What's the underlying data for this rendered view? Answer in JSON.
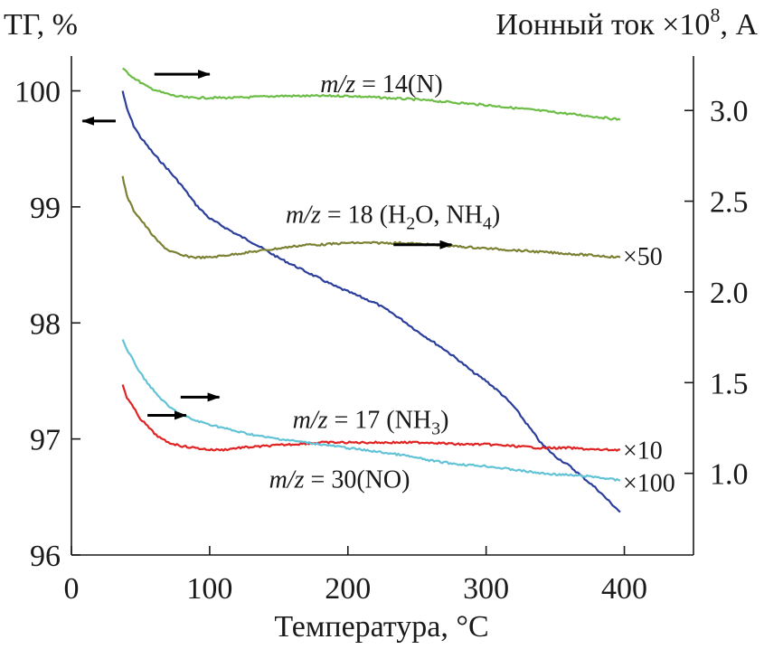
{
  "chart_data": {
    "type": "line",
    "title": "",
    "xlabel": "Температура, °C",
    "ylabel_left": "ТГ, %",
    "ylabel_right": "Ионный ток ×10",
    "ylabel_right_exp": "8",
    "ylabel_right_unit": ", A",
    "xlim": [
      0,
      450
    ],
    "ylim_left": [
      96,
      100.3
    ],
    "ylim_right": [
      0.55,
      3.3
    ],
    "x_ticks": [
      "0",
      "100",
      "200",
      "300",
      "400"
    ],
    "x_tick_values": [
      0,
      100,
      200,
      300,
      400
    ],
    "y_left_ticks": [
      "96",
      "97",
      "98",
      "99",
      "100"
    ],
    "y_left_tick_values": [
      96,
      97,
      98,
      99,
      100
    ],
    "y_right_ticks": [
      "1.0",
      "1.5",
      "2.0",
      "2.5",
      "3.0"
    ],
    "y_right_tick_values": [
      1.0,
      1.5,
      2.0,
      2.5,
      3.0
    ],
    "grid": false,
    "series": [
      {
        "name": "ТГ",
        "axis": "left",
        "color": "#2c3e9c",
        "x": [
          37,
          40,
          45,
          50,
          60,
          70,
          80,
          90,
          100,
          110,
          120,
          130,
          140,
          150,
          160,
          170,
          180,
          190,
          200,
          210,
          220,
          230,
          240,
          250,
          260,
          270,
          280,
          290,
          300,
          310,
          320,
          330,
          340,
          350,
          360,
          370,
          380,
          390,
          397
        ],
        "y": [
          100.0,
          99.85,
          99.7,
          99.6,
          99.45,
          99.32,
          99.18,
          99.02,
          98.9,
          98.83,
          98.76,
          98.7,
          98.63,
          98.56,
          98.5,
          98.44,
          98.38,
          98.32,
          98.27,
          98.22,
          98.17,
          98.1,
          98.02,
          97.93,
          97.85,
          97.77,
          97.68,
          97.58,
          97.5,
          97.4,
          97.28,
          97.12,
          96.96,
          96.85,
          96.77,
          96.67,
          96.57,
          96.45,
          96.37
        ]
      },
      {
        "name": "m/z = 14(N)",
        "axis": "right",
        "color": "#6bbd45",
        "x": [
          37,
          45,
          55,
          65,
          75,
          85,
          100,
          120,
          150,
          200,
          250,
          300,
          350,
          397
        ],
        "y": [
          3.23,
          3.18,
          3.13,
          3.1,
          3.08,
          3.07,
          3.07,
          3.07,
          3.08,
          3.08,
          3.06,
          3.03,
          2.99,
          2.95
        ]
      },
      {
        "name": "m/z = 18 (H₂O, NH₄)",
        "axis": "right",
        "color": "#7b8033",
        "x": [
          37,
          40,
          45,
          50,
          55,
          60,
          65,
          70,
          80,
          90,
          100,
          110,
          120,
          130,
          140,
          150,
          160,
          170,
          180,
          200,
          220,
          240,
          260,
          280,
          300,
          320,
          340,
          360,
          380,
          397
        ],
        "y": [
          2.64,
          2.53,
          2.45,
          2.4,
          2.35,
          2.3,
          2.26,
          2.23,
          2.2,
          2.19,
          2.19,
          2.2,
          2.21,
          2.22,
          2.23,
          2.24,
          2.25,
          2.26,
          2.26,
          2.27,
          2.27,
          2.27,
          2.26,
          2.25,
          2.24,
          2.23,
          2.22,
          2.21,
          2.2,
          2.19
        ]
      },
      {
        "name": "m/z = 17 (NH₃)",
        "axis": "right",
        "color": "#e02424",
        "x": [
          37,
          40,
          45,
          50,
          55,
          60,
          65,
          70,
          80,
          90,
          100,
          110,
          120,
          140,
          160,
          180,
          200,
          220,
          240,
          260,
          280,
          300,
          320,
          340,
          360,
          380,
          397
        ],
        "y": [
          1.49,
          1.42,
          1.36,
          1.3,
          1.26,
          1.22,
          1.19,
          1.17,
          1.15,
          1.14,
          1.13,
          1.13,
          1.14,
          1.15,
          1.16,
          1.17,
          1.17,
          1.17,
          1.17,
          1.17,
          1.16,
          1.16,
          1.15,
          1.14,
          1.14,
          1.13,
          1.13
        ]
      },
      {
        "name": "m/z = 30(NO)",
        "axis": "right",
        "color": "#62c3d6",
        "x": [
          37,
          40,
          45,
          50,
          55,
          60,
          65,
          70,
          80,
          90,
          100,
          110,
          120,
          140,
          160,
          180,
          200,
          220,
          240,
          260,
          280,
          300,
          320,
          340,
          360,
          380,
          397
        ],
        "y": [
          1.74,
          1.68,
          1.62,
          1.55,
          1.5,
          1.45,
          1.41,
          1.37,
          1.32,
          1.29,
          1.27,
          1.25,
          1.23,
          1.2,
          1.18,
          1.16,
          1.14,
          1.12,
          1.1,
          1.07,
          1.05,
          1.04,
          1.02,
          1.0,
          0.99,
          0.98,
          0.96
        ]
      }
    ],
    "annotations": [
      {
        "id": "mz14",
        "prefix": "m/z",
        "text": " = 14(N)",
        "x": 180,
        "y": 3.15
      },
      {
        "id": "mz18",
        "prefix": "m/z",
        "text": " = 18 (H",
        "sub1": "2",
        "mid": "O, NH",
        "sub2": "4",
        "end": ")",
        "x": 155,
        "y": 2.43
      },
      {
        "id": "mz17",
        "prefix": "m/z",
        "text": " = 17 (NH",
        "sub1": "3",
        "end": ")",
        "x": 160,
        "y": 1.3
      },
      {
        "id": "mz30",
        "prefix": "m/z",
        "text": " = 30(NO)",
        "x": 143,
        "y": 0.97
      }
    ],
    "multipliers": [
      {
        "text": "×50",
        "x": 399,
        "y": 2.2
      },
      {
        "text": "×10",
        "x": 399,
        "y": 1.13
      },
      {
        "text": "×100",
        "x": 399,
        "y": 0.95
      }
    ],
    "arrows": [
      {
        "direction": "right",
        "x0": 60,
        "x1": 100,
        "y": 3.2,
        "axis": "right"
      },
      {
        "direction": "left",
        "x0": 32,
        "x1": 8,
        "y": 99.74,
        "axis": "left"
      },
      {
        "direction": "right",
        "x0": 233,
        "x1": 275,
        "y": 2.26,
        "axis": "right"
      },
      {
        "direction": "right",
        "x0": 79,
        "x1": 107,
        "y": 1.42,
        "axis": "right"
      },
      {
        "direction": "right",
        "x0": 55,
        "x1": 83,
        "y": 1.32,
        "axis": "right"
      }
    ]
  }
}
